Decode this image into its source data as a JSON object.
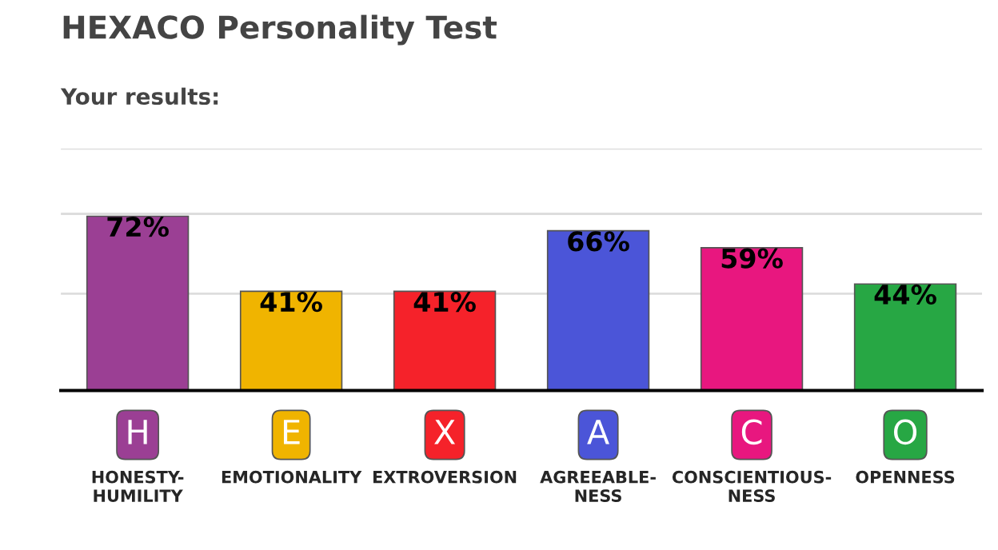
{
  "chart_data": {
    "type": "bar",
    "title": "HEXACO Personality Test",
    "subtitle": "Your results:",
    "categories": [
      "HONESTY-\nHUMILITY",
      "EMOTIONALITY",
      "EXTROVERSION",
      "AGREEABLE-\nNESS",
      "CONSCIENTIOUS-\nNESS",
      "OPENNESS"
    ],
    "values": [
      72,
      41,
      41,
      66,
      59,
      44
    ],
    "value_labels": [
      "72%",
      "41%",
      "41%",
      "66%",
      "59%",
      "44%"
    ],
    "colors": [
      "#9b3f94",
      "#f0b400",
      "#f5222a",
      "#4b55d8",
      "#e8177f",
      "#27a744"
    ],
    "annotations": [
      "H",
      "E",
      "X",
      "A",
      "C",
      "O"
    ],
    "ylim": [
      0,
      100
    ],
    "yticks": [
      {
        "value": 40,
        "label": null
      },
      {
        "value": 73,
        "label": null
      },
      {
        "value": 100,
        "label": null
      }
    ],
    "grid": "y",
    "legend": false
  }
}
